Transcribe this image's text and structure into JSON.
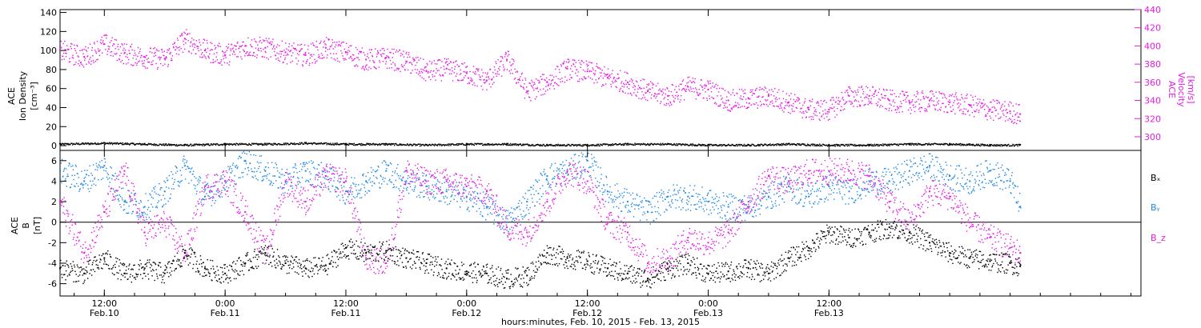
{
  "colors": {
    "density": "#000000",
    "velocity": "#e61ae6",
    "bx": "#000000",
    "by": "#1e88e5",
    "bz": "#e61ae6"
  },
  "chart_data": [
    {
      "type": "scatter",
      "panel": "top",
      "ylabel_left": [
        "ACE",
        "Ion Density",
        "[cm⁻³]"
      ],
      "ylabel_right": [
        "ACE",
        "Velocity",
        "[km/s]"
      ],
      "left_axis": {
        "ylim": [
          -5,
          143
        ],
        "ticks": [
          0,
          20,
          40,
          60,
          80,
          100,
          120,
          140
        ]
      },
      "right_axis": {
        "ylim": [
          285,
          440
        ],
        "ticks": [
          300,
          320,
          340,
          360,
          380,
          400,
          420,
          440
        ]
      },
      "series": [
        {
          "color": "#000000",
          "axis": "left",
          "x": [
            7.6,
            12,
            16,
            20,
            24,
            28,
            32,
            36,
            40,
            44,
            48,
            52,
            56,
            60,
            64,
            68,
            72,
            76,
            80,
            84,
            88,
            92,
            96,
            100,
            103
          ],
          "y": [
            2,
            3,
            2,
            1,
            2,
            2,
            3,
            2,
            2,
            1,
            2,
            2,
            1,
            1,
            2,
            2,
            1,
            1,
            2,
            1,
            1,
            2,
            2,
            1,
            1
          ]
        },
        {
          "color": "#e61ae6",
          "axis": "right",
          "x": [
            7.6,
            10,
            12,
            14,
            16,
            18,
            20,
            22,
            24,
            26,
            28,
            30,
            32,
            34,
            36,
            38,
            40,
            42,
            44,
            46,
            48,
            50,
            52,
            54,
            56,
            58,
            60,
            62,
            64,
            66,
            68,
            70,
            72,
            74,
            76,
            78,
            80,
            82,
            84,
            86,
            88,
            90,
            92,
            94,
            96,
            98,
            100,
            102,
            103
          ],
          "y": [
            395,
            388,
            402,
            392,
            388,
            386,
            408,
            395,
            390,
            400,
            398,
            393,
            390,
            398,
            393,
            385,
            387,
            383,
            372,
            375,
            370,
            362,
            385,
            350,
            360,
            375,
            372,
            365,
            360,
            350,
            345,
            355,
            352,
            340,
            342,
            345,
            338,
            330,
            330,
            345,
            345,
            340,
            338,
            340,
            338,
            335,
            330,
            328,
            325
          ]
        }
      ]
    },
    {
      "type": "scatter",
      "panel": "bottom",
      "ylabel": [
        "ACE",
        "B",
        "[nT]"
      ],
      "ylim": [
        -7.2,
        7
      ],
      "ticks": [
        -6,
        -4,
        -2,
        0,
        2,
        4,
        6
      ],
      "legend": [
        "Bₓ",
        "Bᵧ",
        "B_z"
      ],
      "series": [
        {
          "name": "Bx",
          "color": "#000000",
          "x": [
            7.6,
            10,
            12,
            14,
            16,
            18,
            20,
            22,
            24,
            26,
            28,
            30,
            32,
            34,
            36,
            38,
            40,
            42,
            44,
            46,
            48,
            50,
            52,
            54,
            56,
            58,
            60,
            62,
            64,
            66,
            68,
            70,
            72,
            74,
            76,
            78,
            80,
            82,
            84,
            86,
            88,
            90,
            92,
            94,
            96,
            98,
            100,
            102,
            103
          ],
          "y": [
            -4.5,
            -5,
            -3.5,
            -5,
            -4.5,
            -5,
            -3,
            -4.5,
            -5,
            -4,
            -3,
            -4,
            -4.5,
            -4.2,
            -2.5,
            -3,
            -2.8,
            -3.5,
            -4,
            -4.5,
            -4.8,
            -5,
            -5.5,
            -5.2,
            -3,
            -3.5,
            -3.8,
            -4.5,
            -5,
            -5.5,
            -4.5,
            -4,
            -5,
            -4.8,
            -4.5,
            -5,
            -3.5,
            -2.5,
            -1,
            -1.5,
            -1,
            -0.5,
            -1,
            -2,
            -3,
            -3.5,
            -3.8,
            -4,
            -4.3
          ]
        },
        {
          "name": "By",
          "color": "#1e88e5",
          "x": [
            7.6,
            10,
            12,
            14,
            16,
            18,
            20,
            22,
            24,
            26,
            28,
            30,
            32,
            34,
            36,
            38,
            40,
            42,
            44,
            46,
            48,
            50,
            52,
            54,
            56,
            58,
            60,
            62,
            64,
            66,
            68,
            70,
            72,
            74,
            76,
            78,
            80,
            82,
            84,
            86,
            88,
            90,
            92,
            94,
            96,
            98,
            100,
            102,
            103
          ],
          "y": [
            5,
            4,
            5.5,
            2,
            1.5,
            3,
            5.5,
            2.5,
            4,
            6,
            5,
            4,
            5,
            4.5,
            3,
            4,
            5,
            4,
            3.5,
            3,
            2.5,
            1.5,
            0,
            2,
            4.5,
            5,
            6,
            3,
            2,
            1,
            2.5,
            2.5,
            2,
            1.5,
            1.5,
            2.5,
            3.5,
            2.5,
            3.5,
            3,
            4,
            4,
            5,
            5.5,
            4.5,
            4,
            5,
            4,
            1.5
          ]
        },
        {
          "name": "Bz",
          "color": "#e61ae6",
          "x": [
            7.6,
            10,
            12,
            14,
            16,
            18,
            20,
            22,
            24,
            26,
            28,
            30,
            32,
            34,
            36,
            38,
            40,
            42,
            44,
            46,
            48,
            50,
            52,
            54,
            56,
            58,
            60,
            62,
            64,
            66,
            68,
            70,
            72,
            74,
            76,
            78,
            80,
            82,
            84,
            86,
            88,
            90,
            92,
            94,
            96,
            98,
            100,
            102,
            103
          ],
          "y": [
            2,
            -3,
            1,
            5,
            -1,
            0,
            -3,
            3.5,
            4,
            1,
            -3,
            4,
            2,
            4.5,
            4,
            -3.5,
            -4,
            5,
            4,
            4,
            3.5,
            3,
            -0.5,
            -1,
            2,
            5,
            4,
            0,
            -1,
            -4,
            -3.5,
            -1.5,
            -2,
            -1,
            2,
            4.5,
            4,
            5,
            5,
            5,
            4.5,
            2,
            0,
            3,
            2.5,
            0,
            -1.5,
            -2.5,
            -3
          ]
        }
      ]
    }
  ],
  "x_axis": {
    "xlim": [
      7.6,
      115
    ],
    "ticks": [
      {
        "x": 12,
        "time": "12:00",
        "date": "Feb.10"
      },
      {
        "x": 24,
        "time": "0:00",
        "date": "Feb.11"
      },
      {
        "x": 36,
        "time": "12:00",
        "date": "Feb.11"
      },
      {
        "x": 48,
        "time": "0:00",
        "date": "Feb.12"
      },
      {
        "x": 60,
        "time": "12:00",
        "date": "Feb.12"
      },
      {
        "x": 72,
        "time": "0:00",
        "date": "Feb.13"
      },
      {
        "x": 84,
        "time": "12:00",
        "date": "Feb.13"
      }
    ],
    "xlabel": "hours:minutes, Feb. 10, 2015 - Feb. 13, 2015"
  }
}
